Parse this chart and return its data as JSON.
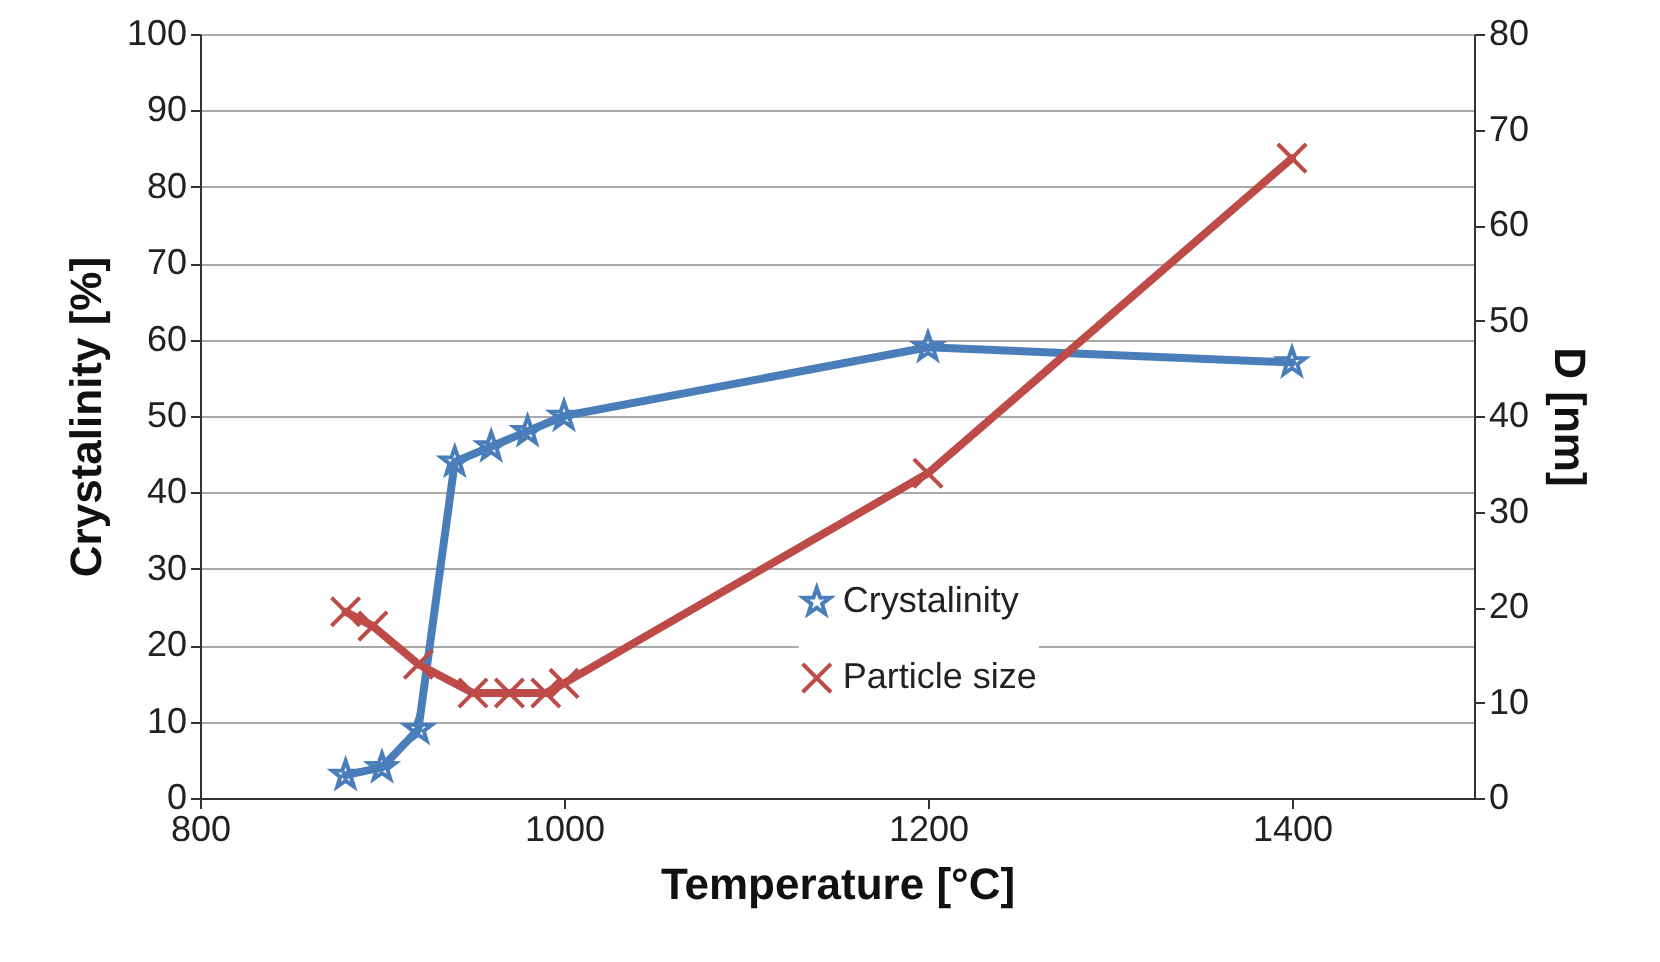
{
  "chart_data": {
    "type": "line",
    "xlabel": "Temperature [°C]",
    "ylabel": "Crystalinity  [%]",
    "y2label": "D [nm]",
    "xlim": [
      800,
      1500
    ],
    "xticks": [
      800,
      1000,
      1200,
      1400
    ],
    "ylim": [
      0,
      100
    ],
    "yticks": [
      0,
      10,
      20,
      30,
      40,
      50,
      60,
      70,
      80,
      90,
      100
    ],
    "y2lim": [
      0,
      80
    ],
    "y2ticks": [
      0,
      10,
      20,
      30,
      40,
      50,
      60,
      70,
      80
    ],
    "grid": "y",
    "legend": "bottom",
    "line_style": "solid",
    "series": [
      {
        "name": "Crystalinity",
        "color": "#4a7ebb",
        "marker": "star",
        "x": [
          880,
          900,
          920,
          940,
          960,
          980,
          1000,
          1200,
          1400
        ],
        "values": [
          3,
          4,
          9,
          44,
          46,
          48,
          50,
          59,
          57
        ]
      },
      {
        "name": "Particle size",
        "color": "#be4b48",
        "marker": "cross",
        "axis": "y2",
        "x": [
          880,
          895,
          920,
          950,
          970,
          990,
          1000,
          1200,
          1400
        ],
        "values": [
          19.5,
          18,
          14,
          11,
          11,
          11,
          12,
          34,
          67
        ]
      }
    ]
  }
}
